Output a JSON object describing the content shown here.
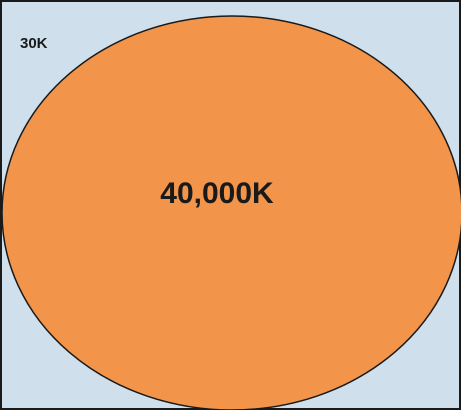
{
  "diagram": {
    "outer_label": "30K",
    "inner_label": "40,000K"
  },
  "colors": {
    "outer_fill": "#cfe0ec",
    "inner_fill": "#f2944a",
    "outline": "#1a1a1a"
  }
}
